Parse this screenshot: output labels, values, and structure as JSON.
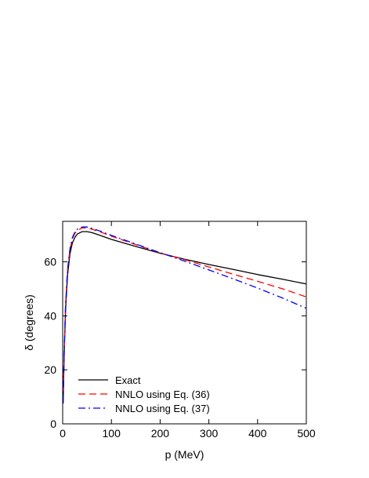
{
  "chart_data": {
    "type": "line",
    "xlabel": "p (MeV)",
    "ylabel": "δ (degrees)",
    "xlim": [
      0,
      500
    ],
    "ylim": [
      0,
      75
    ],
    "xticks": [
      0,
      100,
      200,
      300,
      400,
      500
    ],
    "yticks": [
      0,
      20,
      40,
      60
    ],
    "grid": false,
    "legend_position": "bottom-left",
    "series": [
      {
        "name": "Exact",
        "color": "#000000",
        "dash": "solid",
        "x": [
          1,
          3,
          6,
          10,
          15,
          20,
          25,
          30,
          40,
          50,
          60,
          80,
          100,
          150,
          200,
          250,
          300,
          350,
          400,
          450,
          500
        ],
        "y": [
          7.5,
          25,
          42,
          55,
          63,
          67,
          69,
          70.3,
          71.2,
          71.2,
          70.8,
          69.6,
          68.3,
          65.7,
          63.2,
          61,
          59,
          57.2,
          55.3,
          53.6,
          51.8
        ]
      },
      {
        "name": "NNLO using Eq. (36)",
        "color": "#ff0000",
        "dash": "dashed",
        "x": [
          1,
          3,
          6,
          10,
          15,
          20,
          25,
          30,
          40,
          50,
          60,
          80,
          100,
          150,
          200,
          250,
          300,
          350,
          400,
          450,
          500
        ],
        "y": [
          8,
          27,
          44,
          57,
          64.5,
          68.5,
          70.5,
          71.6,
          72.6,
          72.6,
          72.1,
          70.9,
          69.5,
          66.4,
          63.3,
          60.8,
          58.1,
          55.4,
          52.8,
          50.1,
          47
        ]
      },
      {
        "name": "NNLO using Eq. (37)",
        "color": "#0000ff",
        "dash": "dashdot",
        "x": [
          1,
          3,
          6,
          10,
          15,
          20,
          25,
          30,
          40,
          50,
          60,
          80,
          100,
          150,
          200,
          250,
          300,
          350,
          400,
          450,
          500
        ],
        "y": [
          8,
          27,
          44,
          57,
          64.8,
          69,
          71,
          72.1,
          72.9,
          72.9,
          72.4,
          71.2,
          69.8,
          66.6,
          63.4,
          60.3,
          57,
          53.7,
          50.3,
          46.7,
          42.8
        ]
      }
    ]
  }
}
